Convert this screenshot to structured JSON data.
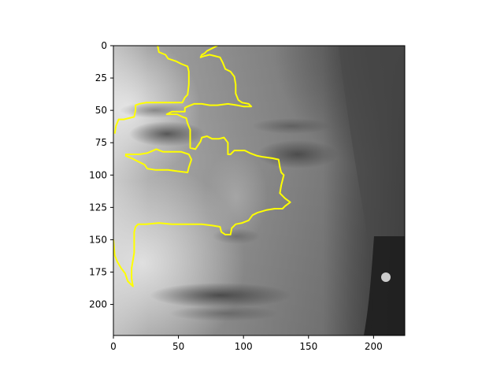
{
  "colors": {
    "overlay": "#ffff00",
    "axis": "#000000",
    "background": "#ffffff"
  },
  "chart_data": {
    "type": "image",
    "xlim": [
      0,
      224
    ],
    "ylim": [
      224,
      0
    ],
    "xticks": [
      0,
      50,
      100,
      150,
      200
    ],
    "yticks": [
      0,
      25,
      50,
      75,
      100,
      125,
      150,
      175,
      200
    ],
    "xtick_labels": [
      "0",
      "50",
      "100",
      "150",
      "200"
    ],
    "ytick_labels": [
      "0",
      "25",
      "50",
      "75",
      "100",
      "125",
      "150",
      "175",
      "200"
    ],
    "title": "",
    "xlabel": "",
    "ylabel": "",
    "grid": false,
    "legend": "none",
    "image_description_semantic": "grayscale-face-crop",
    "contours": [
      {
        "name": "",
        "points": [
          [
            34,
            0
          ],
          [
            35,
            5
          ],
          [
            40,
            7
          ],
          [
            42,
            10
          ],
          [
            48,
            12
          ],
          [
            52,
            14
          ],
          [
            57,
            16
          ],
          [
            58,
            20
          ],
          [
            58,
            30
          ],
          [
            57,
            38
          ],
          [
            55,
            40
          ],
          [
            53,
            44
          ],
          [
            47,
            44
          ],
          [
            40,
            44
          ],
          [
            30,
            44
          ],
          [
            25,
            44
          ],
          [
            20,
            45
          ],
          [
            17,
            46
          ],
          [
            17,
            50
          ],
          [
            16,
            55
          ],
          [
            12,
            56
          ],
          [
            8,
            57
          ],
          [
            4,
            57
          ],
          [
            2,
            62
          ],
          [
            1,
            68
          ]
        ]
      },
      {
        "name": "",
        "points": [
          [
            80,
            0
          ],
          [
            76,
            2
          ],
          [
            72,
            4
          ],
          [
            70,
            6
          ],
          [
            68,
            7
          ],
          [
            67,
            9
          ],
          [
            70,
            8
          ],
          [
            74,
            7
          ],
          [
            78,
            8
          ],
          [
            82,
            9
          ],
          [
            84,
            13
          ],
          [
            86,
            18
          ],
          [
            90,
            20
          ],
          [
            93,
            24
          ],
          [
            94,
            30
          ],
          [
            94,
            37
          ],
          [
            96,
            42
          ],
          [
            99,
            44
          ],
          [
            104,
            45
          ],
          [
            106,
            47
          ],
          [
            100,
            47
          ],
          [
            95,
            46
          ],
          [
            88,
            45
          ],
          [
            80,
            46
          ],
          [
            74,
            46
          ],
          [
            68,
            45
          ],
          [
            62,
            45
          ],
          [
            57,
            47
          ],
          [
            55,
            48
          ],
          [
            55,
            51
          ],
          [
            50,
            51
          ],
          [
            45,
            51
          ],
          [
            41,
            53
          ],
          [
            49,
            53
          ],
          [
            53,
            55
          ],
          [
            56,
            56
          ],
          [
            57,
            60
          ],
          [
            59,
            65
          ],
          [
            59,
            73
          ],
          [
            59,
            79
          ],
          [
            63,
            80
          ],
          [
            67,
            74
          ],
          [
            68,
            71
          ],
          [
            72,
            70
          ],
          [
            76,
            72
          ],
          [
            81,
            72
          ],
          [
            85,
            71
          ],
          [
            88,
            75
          ],
          [
            88,
            84
          ],
          [
            90,
            84
          ],
          [
            93,
            81
          ],
          [
            97,
            81
          ],
          [
            101,
            81
          ],
          [
            105,
            83
          ],
          [
            110,
            85
          ],
          [
            115,
            86
          ],
          [
            122,
            87
          ],
          [
            127,
            88
          ],
          [
            128,
            94
          ],
          [
            129,
            98
          ],
          [
            131,
            100
          ],
          [
            129,
            108
          ],
          [
            128,
            114
          ],
          [
            132,
            118
          ],
          [
            136,
            121
          ],
          [
            132,
            124
          ],
          [
            130,
            126
          ],
          [
            124,
            126
          ],
          [
            118,
            127
          ],
          [
            111,
            129
          ],
          [
            107,
            131
          ],
          [
            104,
            135
          ],
          [
            99,
            137
          ],
          [
            94,
            138
          ],
          [
            91,
            141
          ],
          [
            90,
            146
          ],
          [
            86,
            146
          ],
          [
            83,
            144
          ],
          [
            82,
            140
          ],
          [
            76,
            139
          ],
          [
            68,
            138
          ],
          [
            57,
            138
          ],
          [
            45,
            138
          ],
          [
            35,
            137
          ],
          [
            25,
            138
          ],
          [
            19,
            138
          ],
          [
            17,
            140
          ],
          [
            16,
            144
          ],
          [
            16,
            152
          ],
          [
            16,
            160
          ],
          [
            15,
            166
          ],
          [
            14,
            172
          ],
          [
            14,
            176
          ],
          [
            14,
            180
          ],
          [
            15,
            186
          ],
          [
            11,
            182
          ],
          [
            9,
            176
          ],
          [
            6,
            172
          ],
          [
            3,
            167
          ],
          [
            1,
            162
          ],
          [
            0,
            150
          ]
        ]
      },
      {
        "name": "",
        "points": [
          [
            9,
            84
          ],
          [
            20,
            84
          ],
          [
            26,
            83
          ],
          [
            33,
            80
          ],
          [
            38,
            82
          ],
          [
            44,
            82
          ],
          [
            52,
            82
          ],
          [
            58,
            84
          ],
          [
            60,
            88
          ],
          [
            58,
            94
          ],
          [
            57,
            98
          ],
          [
            49,
            97
          ],
          [
            42,
            96
          ],
          [
            32,
            96
          ],
          [
            26,
            95
          ],
          [
            24,
            92
          ],
          [
            18,
            89
          ],
          [
            14,
            87
          ],
          [
            9,
            85
          ]
        ]
      }
    ]
  }
}
